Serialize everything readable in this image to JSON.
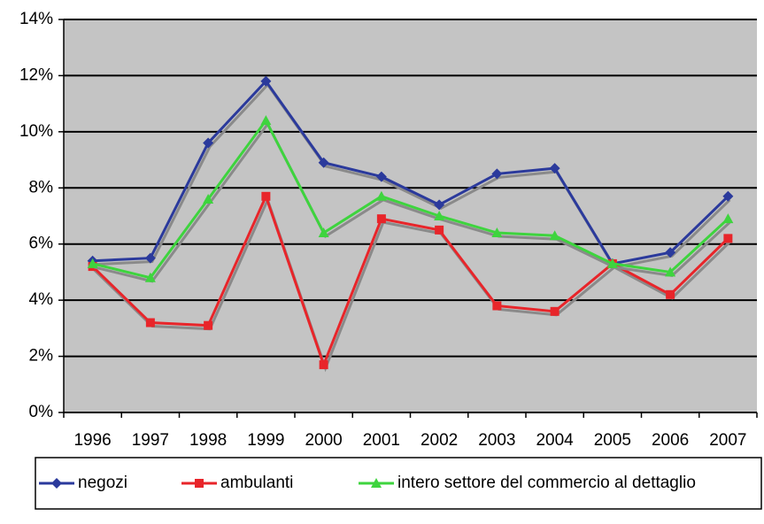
{
  "chart_data": {
    "type": "line",
    "categories": [
      "1996",
      "1997",
      "1998",
      "1999",
      "2000",
      "2001",
      "2002",
      "2003",
      "2004",
      "2005",
      "2006",
      "2007"
    ],
    "series": [
      {
        "name": "negozi",
        "color": "#2b3a9c",
        "marker": "diamond",
        "values": [
          5.4,
          5.5,
          9.6,
          11.8,
          8.9,
          8.4,
          7.4,
          8.5,
          8.7,
          5.3,
          5.7,
          7.7
        ]
      },
      {
        "name": "ambulanti",
        "color": "#e8252a",
        "marker": "square",
        "values": [
          5.2,
          3.2,
          3.1,
          7.7,
          1.7,
          6.9,
          6.5,
          3.8,
          3.6,
          5.3,
          4.2,
          6.2
        ]
      },
      {
        "name": "intero settore del commercio al dettaglio",
        "color": "#3ed43e",
        "marker": "triangle",
        "values": [
          5.3,
          4.8,
          7.6,
          10.4,
          6.4,
          7.7,
          7.0,
          6.4,
          6.3,
          5.3,
          5.0,
          6.9
        ]
      }
    ],
    "ylim": [
      0,
      14
    ],
    "yticks": [
      {
        "value": 0,
        "label": "0%"
      },
      {
        "value": 2,
        "label": "2%"
      },
      {
        "value": 4,
        "label": "4%"
      },
      {
        "value": 6,
        "label": "6%"
      },
      {
        "value": 8,
        "label": "8%"
      },
      {
        "value": 10,
        "label": "10%"
      },
      {
        "value": 12,
        "label": "12%"
      },
      {
        "value": 14,
        "label": "14%"
      }
    ],
    "grid": true,
    "legend": "bottom"
  }
}
